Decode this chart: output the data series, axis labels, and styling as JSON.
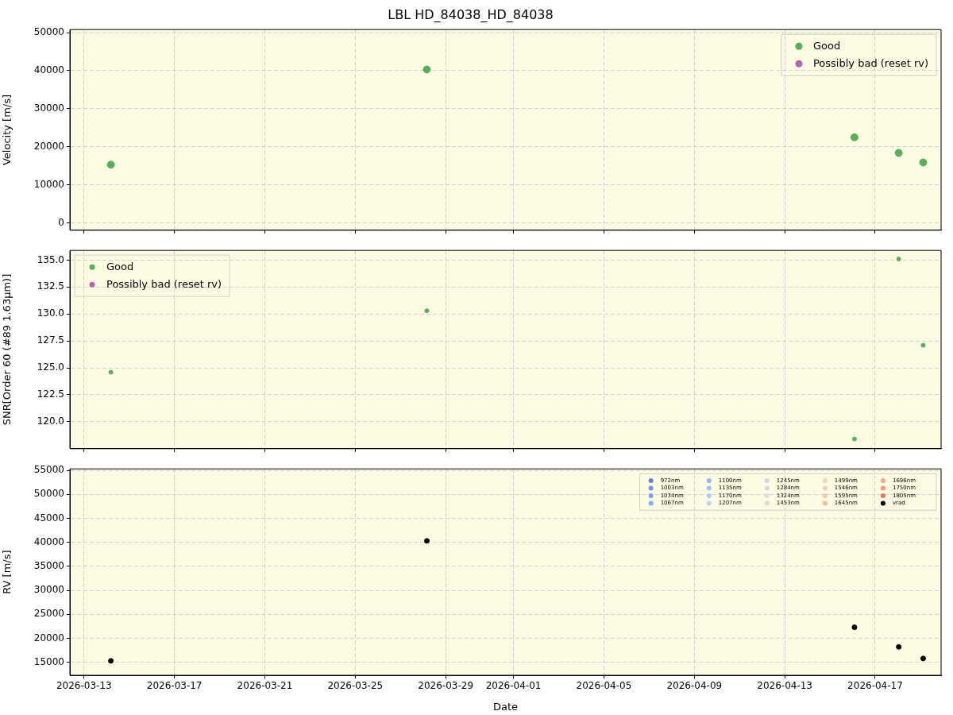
{
  "chart_data": [
    {
      "type": "scatter",
      "title": "LBL HD_84038_HD_84038",
      "ylabel": "Velocity [m/s]",
      "x": [
        "2026-03-14T04:30",
        "2026-03-28T04:00",
        "2026-04-16T02:00",
        "2026-04-18T01:00",
        "2026-04-19T03:00"
      ],
      "series": [
        {
          "name": "Good",
          "color": "#55b155",
          "values": [
            15300,
            40300,
            22500,
            18400,
            15900
          ]
        },
        {
          "name": "Possibly bad (reset rv)",
          "color": "#b565b8",
          "values": [
            null,
            null,
            null,
            null,
            null
          ]
        }
      ],
      "xlim": [
        "2026-03-12T09:00",
        "2026-04-19T22:00"
      ],
      "ylim": [
        -1900,
        50800
      ],
      "yticks": [
        0,
        10000,
        20000,
        30000,
        40000,
        50000
      ],
      "xticks": [
        "2026-03-13",
        "2026-03-17",
        "2026-03-21",
        "2026-03-25",
        "2026-03-29",
        "2026-04-01",
        "2026-04-05",
        "2026-04-09",
        "2026-04-13",
        "2026-04-17"
      ],
      "grid": true,
      "legend": "top right",
      "tick_labels": "y",
      "marker": "circle"
    },
    {
      "type": "scatter",
      "ylabel": "SNR[Order 60 (#89 1.63μm)]",
      "x": [
        "2026-03-14T04:30",
        "2026-03-28T04:00",
        "2026-04-16T02:00",
        "2026-04-18T01:00",
        "2026-04-19T03:00"
      ],
      "series": [
        {
          "name": "Good",
          "color": "#55b155",
          "values": [
            124.6,
            130.3,
            118.4,
            135.1,
            127.1
          ]
        },
        {
          "name": "Possibly bad (reset rv)",
          "color": "#b565b8",
          "values": [
            null,
            null,
            null,
            null,
            null
          ]
        }
      ],
      "xlim": [
        "2026-03-12T09:00",
        "2026-04-19T22:00"
      ],
      "ylim": [
        117.5,
        135.9
      ],
      "yticks": [
        {
          "value": 120,
          "label": "120.0"
        },
        {
          "value": 122.5,
          "label": "122.5"
        },
        {
          "value": 125,
          "label": "125.0"
        },
        {
          "value": 127.5,
          "label": "127.5"
        },
        {
          "value": 130,
          "label": "130.0"
        },
        {
          "value": 132.5,
          "label": "132.5"
        },
        {
          "value": 135,
          "label": "135.0"
        }
      ],
      "xticks": [
        "2026-03-13",
        "2026-03-17",
        "2026-03-21",
        "2026-03-25",
        "2026-03-29",
        "2026-04-01",
        "2026-04-05",
        "2026-04-09",
        "2026-04-13",
        "2026-04-17"
      ],
      "grid": true,
      "legend": "top left",
      "tick_labels": "y",
      "marker": "circle"
    },
    {
      "type": "scatter",
      "ylabel": "RV [m/s]",
      "xlabel": "Date",
      "x": [
        "2026-03-14T04:30",
        "2026-03-28T04:00",
        "2026-04-16T02:00",
        "2026-04-18T01:00",
        "2026-04-19T03:00"
      ],
      "series": [
        {
          "name": "972nm",
          "color": "#6282ea",
          "values": [
            null,
            null,
            null,
            null,
            null
          ]
        },
        {
          "name": "1003nm",
          "color": "#6f92f3",
          "values": [
            null,
            null,
            null,
            null,
            null
          ]
        },
        {
          "name": "1034nm",
          "color": "#7b9ff9",
          "values": [
            null,
            null,
            null,
            null,
            null
          ]
        },
        {
          "name": "1067nm",
          "color": "#88abfd",
          "values": [
            null,
            null,
            null,
            null,
            null
          ]
        },
        {
          "name": "1100nm",
          "color": "#94b6ff",
          "values": [
            null,
            null,
            null,
            null,
            null
          ]
        },
        {
          "name": "1135nm",
          "color": "#a1c0ff",
          "values": [
            null,
            null,
            null,
            null,
            null
          ]
        },
        {
          "name": "1170nm",
          "color": "#adc9fd",
          "values": [
            null,
            null,
            null,
            null,
            null
          ]
        },
        {
          "name": "1207nm",
          "color": "#b9d0f9",
          "values": [
            null,
            null,
            null,
            null,
            null
          ]
        },
        {
          "name": "1245nm",
          "color": "#c5d6f2",
          "values": [
            null,
            null,
            null,
            null,
            null
          ]
        },
        {
          "name": "1284nm",
          "color": "#d0dae9",
          "values": [
            null,
            null,
            null,
            null,
            null
          ]
        },
        {
          "name": "1324nm",
          "color": "#dadce0",
          "values": [
            null,
            null,
            null,
            null,
            null
          ]
        },
        {
          "name": "1453nm",
          "color": "#e4d9d2",
          "values": [
            null,
            null,
            null,
            null,
            null
          ]
        },
        {
          "name": "1499nm",
          "color": "#ecd3c5",
          "values": [
            null,
            null,
            null,
            null,
            null
          ]
        },
        {
          "name": "1546nm",
          "color": "#f1ccb8",
          "values": [
            null,
            null,
            null,
            null,
            null
          ]
        },
        {
          "name": "1595nm",
          "color": "#f4c4ab",
          "values": [
            null,
            null,
            null,
            null,
            null
          ]
        },
        {
          "name": "1645nm",
          "color": "#f6b89c",
          "values": [
            null,
            null,
            null,
            null,
            null
          ]
        },
        {
          "name": "1696nm",
          "color": "#f5a98a",
          "values": [
            null,
            null,
            null,
            null,
            null
          ]
        },
        {
          "name": "1750nm",
          "color": "#f29a7a",
          "values": [
            null,
            null,
            null,
            null,
            null
          ]
        },
        {
          "name": "1805nm",
          "color": "#e7745b",
          "values": [
            null,
            null,
            null,
            null,
            null
          ]
        },
        {
          "name": "vrad",
          "color": "#000000",
          "values": [
            15300,
            40300,
            22300,
            18200,
            15800
          ]
        }
      ],
      "xlim": [
        "2026-03-12T09:00",
        "2026-04-19T22:00"
      ],
      "ylim": [
        12300,
        55300
      ],
      "yticks": [
        15000,
        20000,
        25000,
        30000,
        35000,
        40000,
        45000,
        50000,
        55000
      ],
      "xticks": [
        "2026-03-13",
        "2026-03-17",
        "2026-03-21",
        "2026-03-25",
        "2026-03-29",
        "2026-04-01",
        "2026-04-05",
        "2026-04-09",
        "2026-04-13",
        "2026-04-17"
      ],
      "grid": true,
      "legend": "top right",
      "marker": "circle"
    }
  ]
}
